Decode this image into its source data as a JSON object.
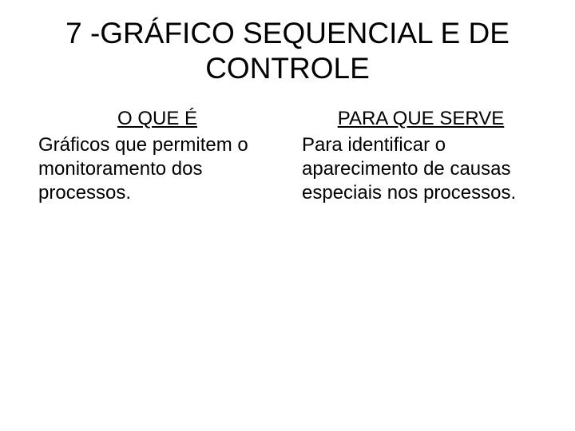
{
  "title": "7 -GRÁFICO SEQUENCIAL E DE CONTROLE",
  "left": {
    "heading": "O QUE É",
    "body": "Gráficos que permitem o monitoramento dos processos."
  },
  "right": {
    "heading": "PARA QUE SERVE",
    "body": "Para identificar o aparecimento de causas especiais nos processos."
  }
}
